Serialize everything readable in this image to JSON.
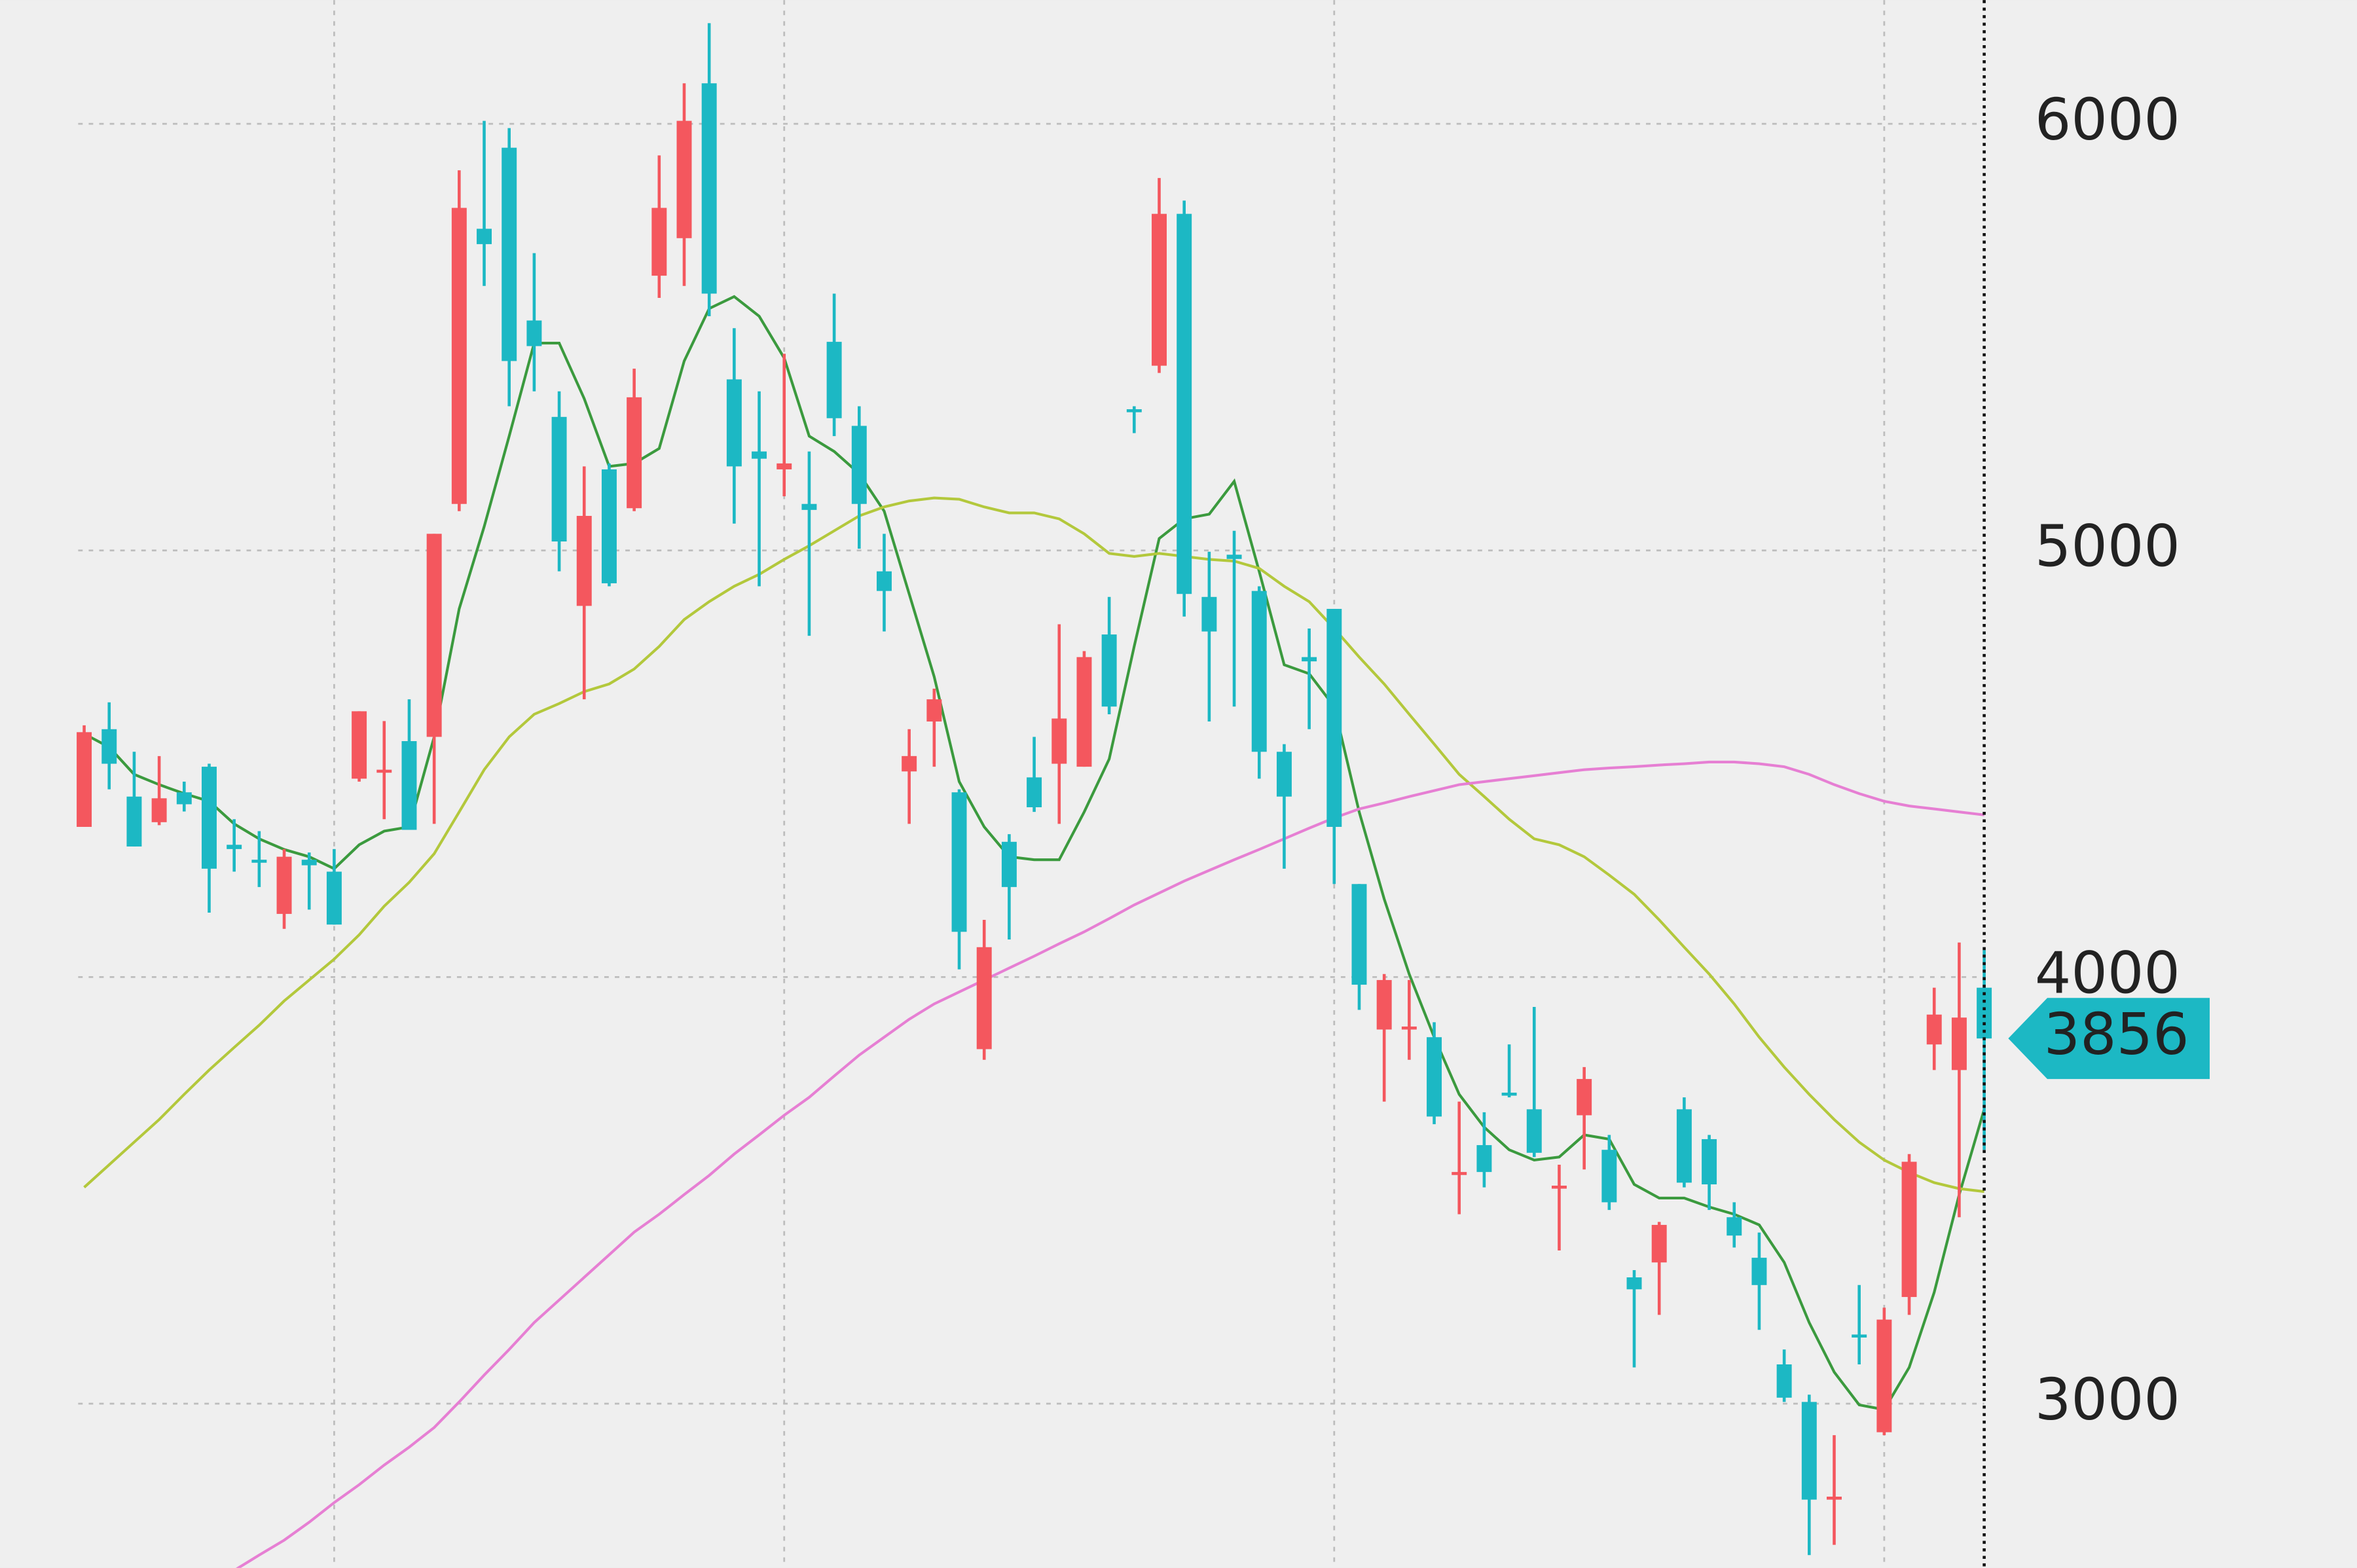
{
  "chart_data": {
    "type": "candlestick",
    "categories": [
      null,
      null,
      null,
      null,
      null,
      null,
      null,
      null,
      null,
      null,
      null,
      null,
      null,
      null,
      null,
      null,
      null,
      null,
      null,
      null,
      null,
      null,
      null,
      null,
      null,
      null,
      null,
      null,
      null,
      null,
      null,
      null,
      null,
      null,
      null,
      null,
      null,
      null,
      null,
      null,
      null,
      null,
      null,
      null,
      null,
      null,
      null,
      null,
      null,
      null,
      null,
      null,
      null,
      null,
      null,
      null,
      null,
      null,
      null,
      null,
      null,
      null,
      null,
      null,
      null,
      null,
      null,
      null,
      null,
      null,
      null,
      null,
      null,
      null,
      null,
      null,
      null
    ],
    "open": [
      4352,
      4581,
      4423,
      4363,
      4433,
      4493,
      4310,
      4275,
      4148,
      4275,
      4247,
      4465,
      4479,
      4553,
      4563,
      5109,
      5754,
      5944,
      5539,
      5313,
      4870,
      5190,
      5099,
      5644,
      5732,
      6095,
      5401,
      5232,
      5190,
      5109,
      5489,
      5292,
      4951,
      4482,
      4599,
      4433,
      3831,
      4317,
      4468,
      4500,
      4493,
      4803,
      5331,
      5433,
      5789,
      4891,
      4990,
      4905,
      4528,
      4750,
      4863,
      4218,
      3877,
      3880,
      3859,
      3539,
      3606,
      3729,
      3690,
      3504,
      3676,
      3595,
      3296,
      3331,
      3690,
      3620,
      3437,
      3342,
      3092,
      3004,
      2778,
      3162,
      2933,
      3250,
      3842,
      3782,
      3975
    ],
    "high": [
      4590,
      4644,
      4528,
      4518,
      4458,
      4500,
      4370,
      4342,
      4300,
      4292,
      4300,
      4623,
      4600,
      4651,
      5039,
      5891,
      6007,
      5990,
      5697,
      5373,
      5197,
      5204,
      5426,
      5926,
      6095,
      6236,
      5521,
      5373,
      5461,
      5232,
      5602,
      5338,
      5039,
      4581,
      4676,
      4440,
      4134,
      4335,
      4563,
      4827,
      4764,
      4891,
      5338,
      5873,
      5820,
      4997,
      5046,
      4916,
      4546,
      4817,
      4863,
      4218,
      4007,
      3993,
      3894,
      3708,
      3683,
      3842,
      3930,
      3560,
      3789,
      3630,
      3313,
      3426,
      3718,
      3630,
      3472,
      3401,
      3127,
      3021,
      2926,
      3278,
      3225,
      3585,
      3975,
      4081,
      4063
    ],
    "low": [
      4352,
      4440,
      4306,
      4356,
      4388,
      4151,
      4247,
      4211,
      4113,
      4158,
      4123,
      4458,
      4370,
      4345,
      4359,
      5092,
      5620,
      5338,
      5373,
      4951,
      4651,
      4916,
      5092,
      5592,
      5620,
      5549,
      5063,
      4916,
      5127,
      4800,
      5268,
      5004,
      4810,
      4359,
      4493,
      4018,
      3806,
      4088,
      4387,
      4359,
      4493,
      4616,
      5275,
      5416,
      4845,
      4599,
      4634,
      4465,
      4254,
      4581,
      4218,
      3923,
      3708,
      3806,
      3655,
      3444,
      3507,
      3718,
      3578,
      3359,
      3549,
      3454,
      3085,
      3208,
      3507,
      3454,
      3366,
      3173,
      3004,
      2645,
      2669,
      3092,
      2926,
      3208,
      3782,
      3437,
      3595
    ],
    "close": [
      4574,
      4500,
      4306,
      4419,
      4405,
      4254,
      4300,
      4270,
      4282,
      4262,
      4123,
      4623,
      4486,
      4345,
      5039,
      5803,
      5718,
      5444,
      5479,
      5021,
      5081,
      4923,
      5359,
      5803,
      6007,
      5602,
      5197,
      5215,
      5204,
      5095,
      5310,
      5109,
      4905,
      4518,
      4651,
      4106,
      4070,
      4211,
      4398,
      4606,
      4750,
      4634,
      5326,
      5789,
      4898,
      4810,
      4980,
      4528,
      4423,
      4740,
      4352,
      3982,
      3993,
      3884,
      3673,
      3543,
      3543,
      3725,
      3588,
      3511,
      3761,
      3472,
      3268,
      3419,
      3518,
      3514,
      3394,
      3278,
      3014,
      2775,
      2782,
      3155,
      3197,
      3567,
      3912,
      3905,
      3856
    ],
    "up_color": "#f4575e",
    "down_color": "#1cb8c4",
    "series": [
      {
        "color": "#3b9a3e",
        "values": [
          4570,
          4539,
          4475,
          4451,
          4430,
          4412,
          4359,
          4324,
          4299,
          4282,
          4254,
          4310,
          4342,
          4352,
          4563,
          4863,
          5056,
          5268,
          5486,
          5486,
          5356,
          5197,
          5204,
          5239,
          5444,
          5567,
          5595,
          5549,
          5451,
          5268,
          5232,
          5180,
          5092,
          4898,
          4704,
          4458,
          4352,
          4282,
          4275,
          4275,
          4387,
          4511,
          4775,
          5028,
          5074,
          5085,
          5162,
          4951,
          4732,
          4711,
          4634,
          4387,
          4183,
          4007,
          3859,
          3725,
          3648,
          3595,
          3571,
          3578,
          3630,
          3620,
          3514,
          3482,
          3482,
          3461,
          3444,
          3419,
          3331,
          3190,
          3074,
          2997,
          2986,
          3085,
          3261,
          3490,
          3690
        ]
      },
      {
        "color": "#b3c83c",
        "values": [
          3507,
          3560,
          3613,
          3666,
          3725,
          3782,
          3835,
          3887,
          3944,
          3993,
          4042,
          4099,
          4166,
          4222,
          4289,
          4387,
          4486,
          4563,
          4616,
          4641,
          4669,
          4687,
          4722,
          4775,
          4838,
          4880,
          4916,
          4944,
          4979,
          5011,
          5046,
          5081,
          5102,
          5116,
          5123,
          5120,
          5102,
          5088,
          5088,
          5074,
          5039,
          4993,
          4986,
          4993,
          4986,
          4979,
          4975,
          4958,
          4916,
          4880,
          4817,
          4750,
          4687,
          4616,
          4546,
          4475,
          4423,
          4370,
          4324,
          4310,
          4282,
          4239,
          4194,
          4134,
          4070,
          4007,
          3937,
          3859,
          3789,
          3725,
          3666,
          3613,
          3571,
          3542,
          3518,
          3504,
          3497
        ]
      },
      {
        "color": "#e67fd3",
        "values": [
          null,
          null,
          null,
          null,
          null,
          null,
          2609,
          2645,
          2680,
          2722,
          2768,
          2810,
          2856,
          2898,
          2944,
          3004,
          3067,
          3127,
          3190,
          3243,
          3296,
          3349,
          3402,
          3444,
          3490,
          3535,
          3585,
          3630,
          3676,
          3718,
          3768,
          3817,
          3859,
          3901,
          3937,
          3965,
          3993,
          4021,
          4049,
          4078,
          4106,
          4137,
          4169,
          4197,
          4225,
          4250,
          4275,
          4299,
          4324,
          4349,
          4373,
          4394,
          4408,
          4423,
          4437,
          4451,
          4458,
          4465,
          4472,
          4479,
          4486,
          4490,
          4493,
          4497,
          4500,
          4504,
          4504,
          4500,
          4493,
          4475,
          4451,
          4430,
          4412,
          4401,
          4394,
          4387,
          4380
        ]
      }
    ],
    "ylim": [
      2615,
      6290
    ],
    "yticks": [
      3000,
      4000,
      5000,
      6000
    ],
    "xticks": [
      10,
      28,
      50,
      72
    ],
    "grid": true
  }
}
